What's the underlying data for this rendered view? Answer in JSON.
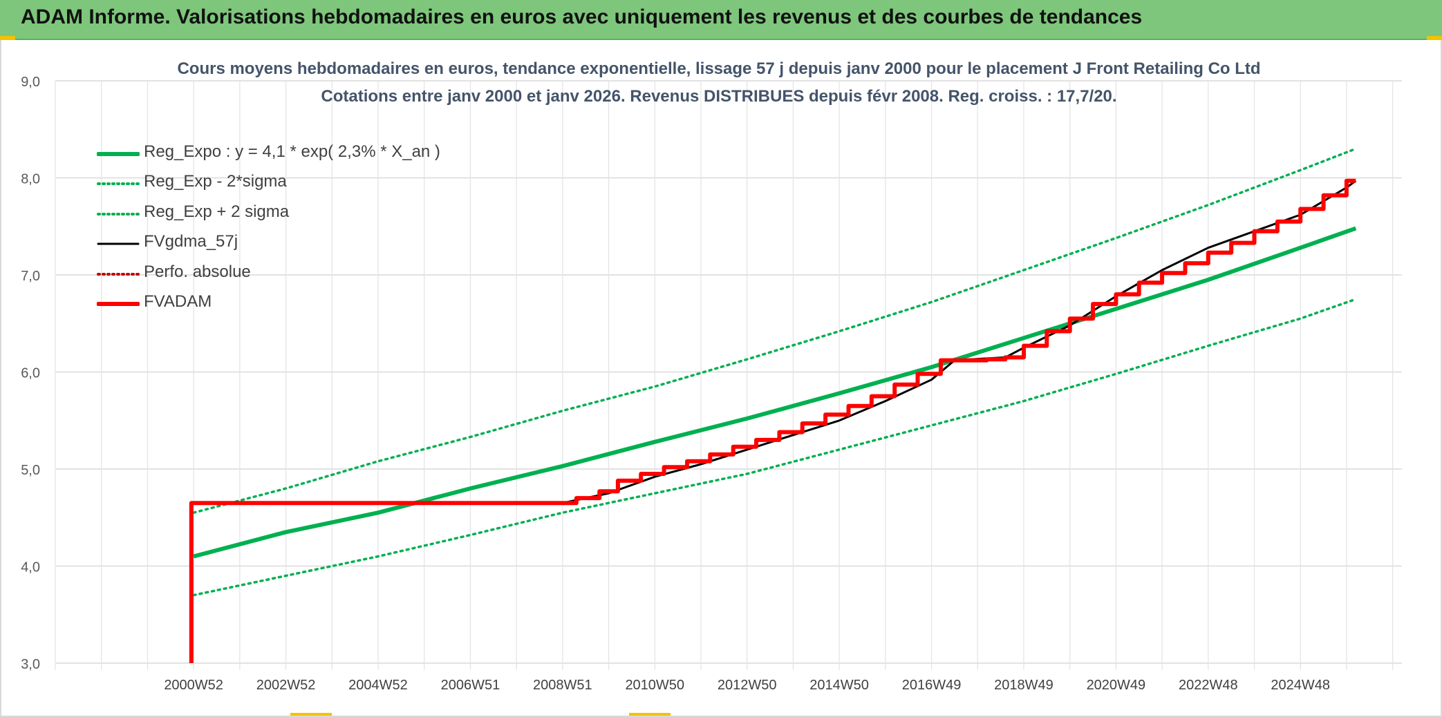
{
  "banner": {
    "title": "ADAM Informe. Valorisations hebdomadaires en euros avec uniquement les revenus et des courbes de tendances",
    "background": "#7dc67b"
  },
  "chart_data": {
    "type": "line",
    "title": "Cours moyens hebdomadaires en euros, tendance exponentielle, lissage 57 j depuis janv 2000 pour le placement J Front Retailing Co Ltd",
    "subtitle": "Cotations entre janv 2000 et janv 2026. Revenus DISTRIBUES depuis févr 2008. Reg. croiss. : 17,7/20.",
    "ylim": [
      3.0,
      9.0
    ],
    "yticks": [
      "3,0",
      "4,0",
      "5,0",
      "6,0",
      "7,0",
      "8,0",
      "9,0"
    ],
    "xlim": [
      1997,
      2026.2
    ],
    "xticks": [
      {
        "x": 2000.0,
        "label": "2000W52"
      },
      {
        "x": 2002.0,
        "label": "2002W52"
      },
      {
        "x": 2004.0,
        "label": "2004W52"
      },
      {
        "x": 2006.0,
        "label": "2006W51"
      },
      {
        "x": 2008.0,
        "label": "2008W51"
      },
      {
        "x": 2010.0,
        "label": "2010W50"
      },
      {
        "x": 2012.0,
        "label": "2012W50"
      },
      {
        "x": 2014.0,
        "label": "2014W50"
      },
      {
        "x": 2016.0,
        "label": "2016W49"
      },
      {
        "x": 2018.0,
        "label": "2018W49"
      },
      {
        "x": 2020.0,
        "label": "2020W49"
      },
      {
        "x": 2022.0,
        "label": "2022W48"
      },
      {
        "x": 2024.0,
        "label": "2024W48"
      }
    ],
    "grid": true,
    "legend_position": "top-left",
    "series": [
      {
        "name": "Reg_Expo : y = 4,1 * exp( 2,3% *  X_an )",
        "color": "#00b050",
        "style": "solid-thick",
        "x": [
          2000.0,
          2002.0,
          2004.0,
          2006.0,
          2008.0,
          2010.0,
          2012.0,
          2014.0,
          2016.0,
          2018.0,
          2020.0,
          2022.0,
          2024.0,
          2025.2
        ],
        "y": [
          4.1,
          4.35,
          4.55,
          4.8,
          5.03,
          5.28,
          5.52,
          5.78,
          6.05,
          6.35,
          6.65,
          6.95,
          7.28,
          7.48
        ]
      },
      {
        "name": "Reg_Exp - 2*sigma",
        "color": "#00b050",
        "style": "dotted",
        "x": [
          2000.0,
          2002.0,
          2004.0,
          2006.0,
          2008.0,
          2010.0,
          2012.0,
          2014.0,
          2016.0,
          2018.0,
          2020.0,
          2022.0,
          2024.0,
          2025.2
        ],
        "y": [
          3.7,
          3.9,
          4.1,
          4.32,
          4.55,
          4.75,
          4.95,
          5.2,
          5.45,
          5.7,
          5.98,
          6.27,
          6.55,
          6.75
        ]
      },
      {
        "name": "Reg_Exp + 2 sigma",
        "color": "#00b050",
        "style": "dotted",
        "x": [
          2000.0,
          2002.0,
          2004.0,
          2006.0,
          2008.0,
          2010.0,
          2012.0,
          2014.0,
          2016.0,
          2018.0,
          2020.0,
          2022.0,
          2024.0,
          2025.2
        ],
        "y": [
          4.55,
          4.8,
          5.08,
          5.33,
          5.6,
          5.85,
          6.13,
          6.42,
          6.72,
          7.05,
          7.38,
          7.72,
          8.08,
          8.3
        ]
      },
      {
        "name": "FVgdma_57j",
        "color": "#000000",
        "style": "solid",
        "x": [
          2000.0,
          2004.0,
          2008.0,
          2008.5,
          2009.0,
          2010.0,
          2011.0,
          2012.0,
          2013.0,
          2014.0,
          2015.0,
          2016.0,
          2016.5,
          2017.6,
          2018.0,
          2019.0,
          2020.0,
          2021.0,
          2022.0,
          2023.0,
          2024.0,
          2025.0,
          2025.2
        ],
        "y": [
          4.65,
          4.65,
          4.65,
          4.7,
          4.75,
          4.92,
          5.05,
          5.2,
          5.35,
          5.5,
          5.7,
          5.92,
          6.12,
          6.15,
          6.25,
          6.48,
          6.78,
          7.05,
          7.28,
          7.45,
          7.62,
          7.9,
          7.97
        ]
      },
      {
        "name": "Perfo. absolue",
        "color": "#c00000",
        "style": "dotted",
        "x": [],
        "y": []
      },
      {
        "name": "FVADAM",
        "color": "#ff0000",
        "style": "solid-thick",
        "step": true,
        "x": [
          1999.95,
          1999.95,
          2008.1,
          2008.3,
          2008.8,
          2009.2,
          2009.7,
          2010.2,
          2010.7,
          2011.2,
          2011.7,
          2012.2,
          2012.7,
          2013.2,
          2013.7,
          2014.2,
          2014.7,
          2015.2,
          2015.7,
          2016.2,
          2016.7,
          2017.2,
          2017.6,
          2018.0,
          2018.5,
          2019.0,
          2019.5,
          2020.0,
          2020.5,
          2021.0,
          2021.5,
          2022.0,
          2022.5,
          2023.0,
          2023.5,
          2024.0,
          2024.5,
          2025.0,
          2025.2
        ],
        "y": [
          3.0,
          4.65,
          4.65,
          4.7,
          4.77,
          4.88,
          4.95,
          5.02,
          5.08,
          5.15,
          5.23,
          5.3,
          5.38,
          5.47,
          5.56,
          5.65,
          5.75,
          5.87,
          5.98,
          6.12,
          6.12,
          6.13,
          6.15,
          6.27,
          6.42,
          6.55,
          6.7,
          6.8,
          6.92,
          7.02,
          7.12,
          7.23,
          7.33,
          7.45,
          7.55,
          7.68,
          7.82,
          7.97,
          7.97
        ]
      }
    ]
  }
}
